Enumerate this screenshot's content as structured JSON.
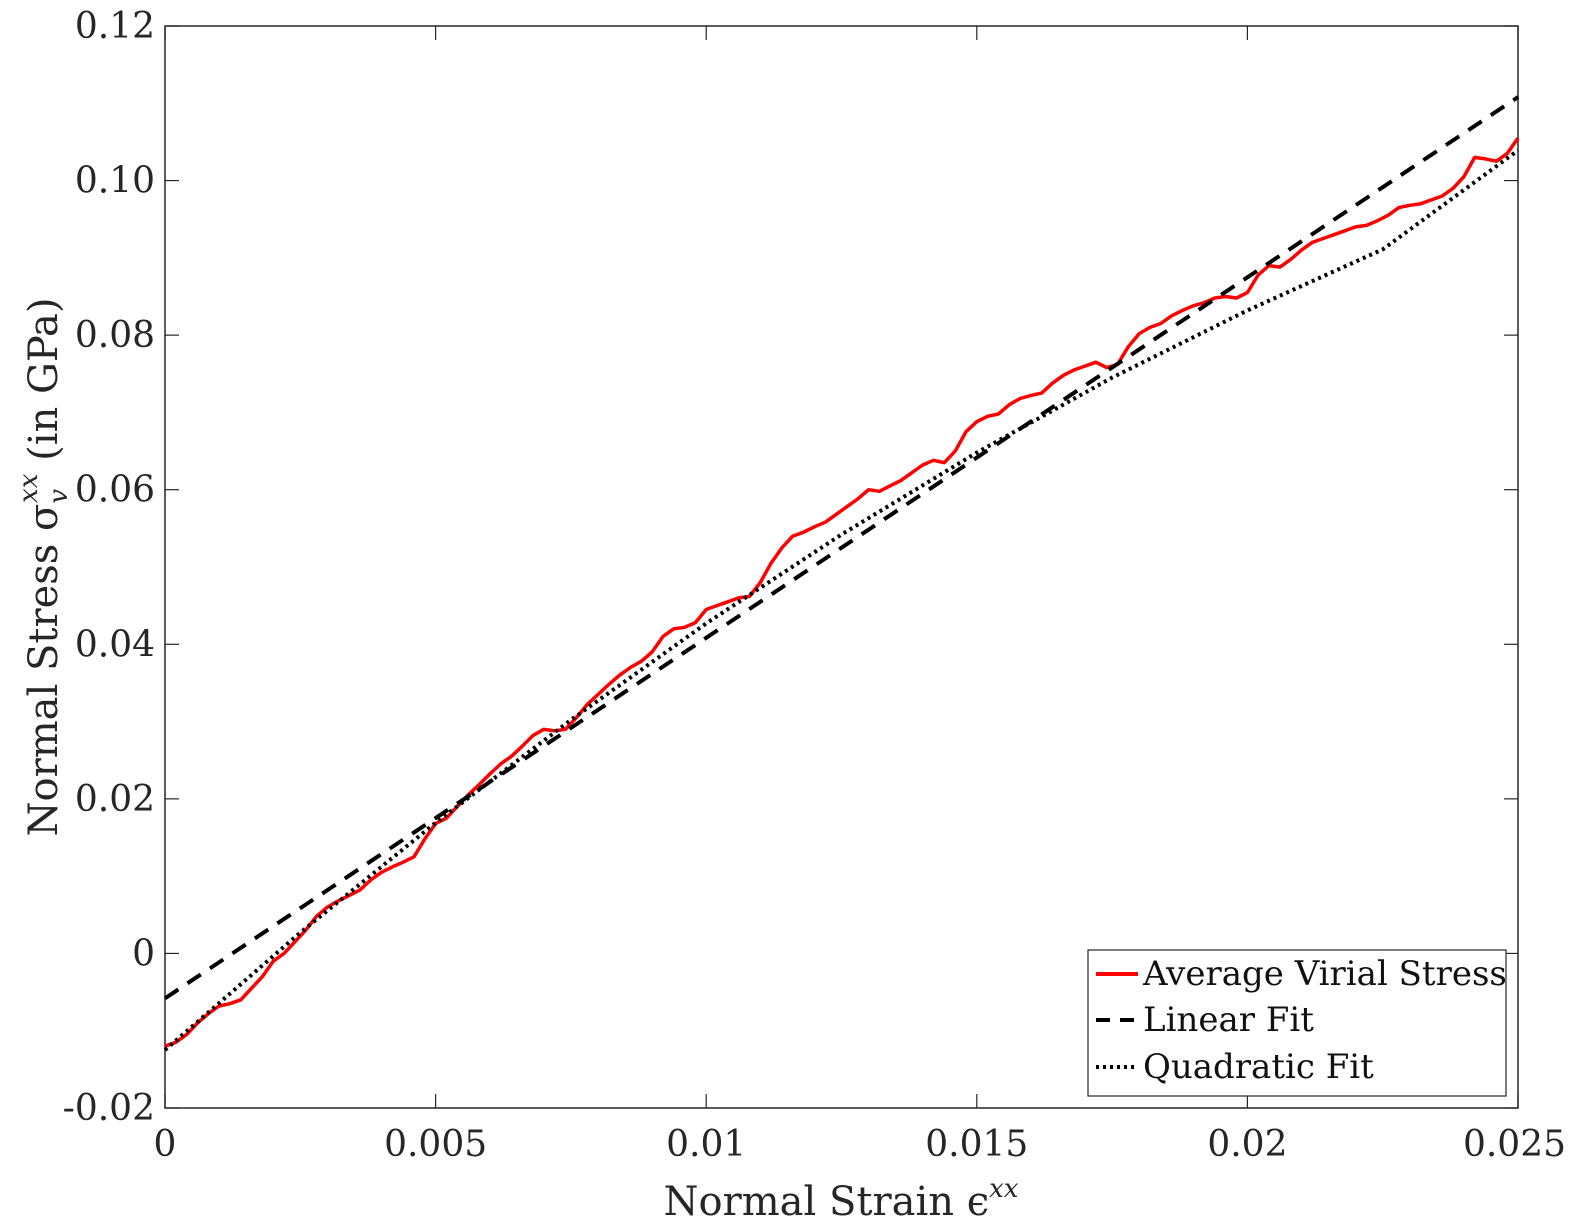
{
  "chart_data": {
    "type": "line",
    "xlabel": "Normal Strain ϵ",
    "xlabel_sup": "xx",
    "ylabel": "Normal Stress σ",
    "ylabel_sub": "v",
    "ylabel_sup": "xx",
    "ylabel_suffix": " (in GPa)",
    "xlim": [
      0,
      0.025
    ],
    "ylim": [
      -0.02,
      0.12
    ],
    "x_ticks": [
      0,
      0.005,
      0.01,
      0.015,
      0.02,
      0.025
    ],
    "x_tick_labels": [
      "0",
      "0.005",
      "0.01",
      "0.015",
      "0.02",
      "0.025"
    ],
    "y_ticks": [
      -0.02,
      0,
      0.02,
      0.04,
      0.06,
      0.08,
      0.1,
      0.12
    ],
    "y_tick_labels": [
      "-0.02",
      "0",
      "0.02",
      "0.04",
      "0.06",
      "0.08",
      "0.10",
      "0.12"
    ],
    "grid": false,
    "legend_position": "bottom-right",
    "series": [
      {
        "name": "Average Virial Stress",
        "style": "solid",
        "color": "#ff0000",
        "x": [
          0,
          0.0002,
          0.0004,
          0.0006,
          0.0008,
          0.001,
          0.0012,
          0.0014,
          0.0016,
          0.0018,
          0.002,
          0.0022,
          0.0024,
          0.0026,
          0.0028,
          0.003,
          0.0032,
          0.0034,
          0.0036,
          0.0038,
          0.004,
          0.0042,
          0.0044,
          0.0046,
          0.0048,
          0.005,
          0.0052,
          0.0054,
          0.0056,
          0.0058,
          0.006,
          0.0062,
          0.0064,
          0.0066,
          0.0068,
          0.007,
          0.0072,
          0.0074,
          0.0076,
          0.0078,
          0.008,
          0.0082,
          0.0084,
          0.0086,
          0.0088,
          0.009,
          0.0092,
          0.0094,
          0.0096,
          0.0098,
          0.01,
          0.0102,
          0.0104,
          0.0106,
          0.0108,
          0.011,
          0.0112,
          0.0114,
          0.0116,
          0.0118,
          0.012,
          0.0122,
          0.0124,
          0.0126,
          0.0128,
          0.013,
          0.0132,
          0.0134,
          0.0136,
          0.0138,
          0.014,
          0.0142,
          0.0144,
          0.0146,
          0.0148,
          0.015,
          0.0152,
          0.0154,
          0.0156,
          0.0158,
          0.016,
          0.0162,
          0.0164,
          0.0166,
          0.0168,
          0.017,
          0.0172,
          0.0174,
          0.0176,
          0.0178,
          0.018,
          0.0182,
          0.0184,
          0.0186,
          0.0188,
          0.019,
          0.0192,
          0.0194,
          0.0196,
          0.0198,
          0.02,
          0.0202,
          0.0204,
          0.0206,
          0.0208,
          0.021,
          0.0212,
          0.0214,
          0.0216,
          0.0218,
          0.022,
          0.0222,
          0.0224,
          0.0226,
          0.0228,
          0.023,
          0.0232,
          0.0234,
          0.0236,
          0.0238,
          0.024,
          0.0242,
          0.0244,
          0.0246,
          0.0248,
          0.025
        ],
        "y": [
          -0.012,
          -0.0115,
          -0.0105,
          -0.009,
          -0.0078,
          -0.0068,
          -0.0065,
          -0.006,
          -0.0045,
          -0.003,
          -0.001,
          0.0,
          0.0015,
          0.003,
          0.0048,
          0.006,
          0.0068,
          0.0075,
          0.0082,
          0.0095,
          0.0105,
          0.0112,
          0.0118,
          0.0125,
          0.0148,
          0.0168,
          0.0175,
          0.019,
          0.0205,
          0.0218,
          0.0232,
          0.0245,
          0.0255,
          0.0268,
          0.0282,
          0.029,
          0.0288,
          0.029,
          0.0305,
          0.0322,
          0.0335,
          0.0348,
          0.036,
          0.037,
          0.0378,
          0.039,
          0.041,
          0.042,
          0.0422,
          0.0428,
          0.0445,
          0.045,
          0.0455,
          0.046,
          0.0462,
          0.048,
          0.0505,
          0.0525,
          0.054,
          0.0545,
          0.0552,
          0.0558,
          0.0568,
          0.0578,
          0.0588,
          0.06,
          0.0598,
          0.0605,
          0.0612,
          0.0622,
          0.0632,
          0.0638,
          0.0635,
          0.065,
          0.0675,
          0.0688,
          0.0695,
          0.0698,
          0.071,
          0.0718,
          0.0722,
          0.0725,
          0.0738,
          0.0748,
          0.0755,
          0.076,
          0.0765,
          0.0758,
          0.0762,
          0.0785,
          0.0802,
          0.081,
          0.0815,
          0.0825,
          0.0832,
          0.0838,
          0.0842,
          0.0848,
          0.085,
          0.0848,
          0.0855,
          0.0878,
          0.089,
          0.0888,
          0.0898,
          0.091,
          0.092,
          0.0925,
          0.093,
          0.0935,
          0.094,
          0.0942,
          0.0948,
          0.0955,
          0.0965,
          0.0968,
          0.097,
          0.0975,
          0.098,
          0.099,
          0.1005,
          0.103,
          0.1028,
          0.1025,
          0.1035,
          0.1055
        ]
      },
      {
        "name": "Linear Fit",
        "style": "dashed",
        "color": "#000000",
        "x": [
          0,
          0.025
        ],
        "y": [
          -0.0058,
          0.1108
        ]
      },
      {
        "name": "Quadratic Fit",
        "style": "dotted",
        "color": "#000000",
        "x": [
          0,
          0.0025,
          0.005,
          0.0075,
          0.01,
          0.0125,
          0.015,
          0.0175,
          0.02,
          0.0225,
          0.025
        ],
        "y": [
          -0.0125,
          0.0027,
          0.0169,
          0.0302,
          0.0427,
          0.0542,
          0.0648,
          0.0745,
          0.0832,
          0.0911,
          0.1039
        ]
      }
    ]
  }
}
